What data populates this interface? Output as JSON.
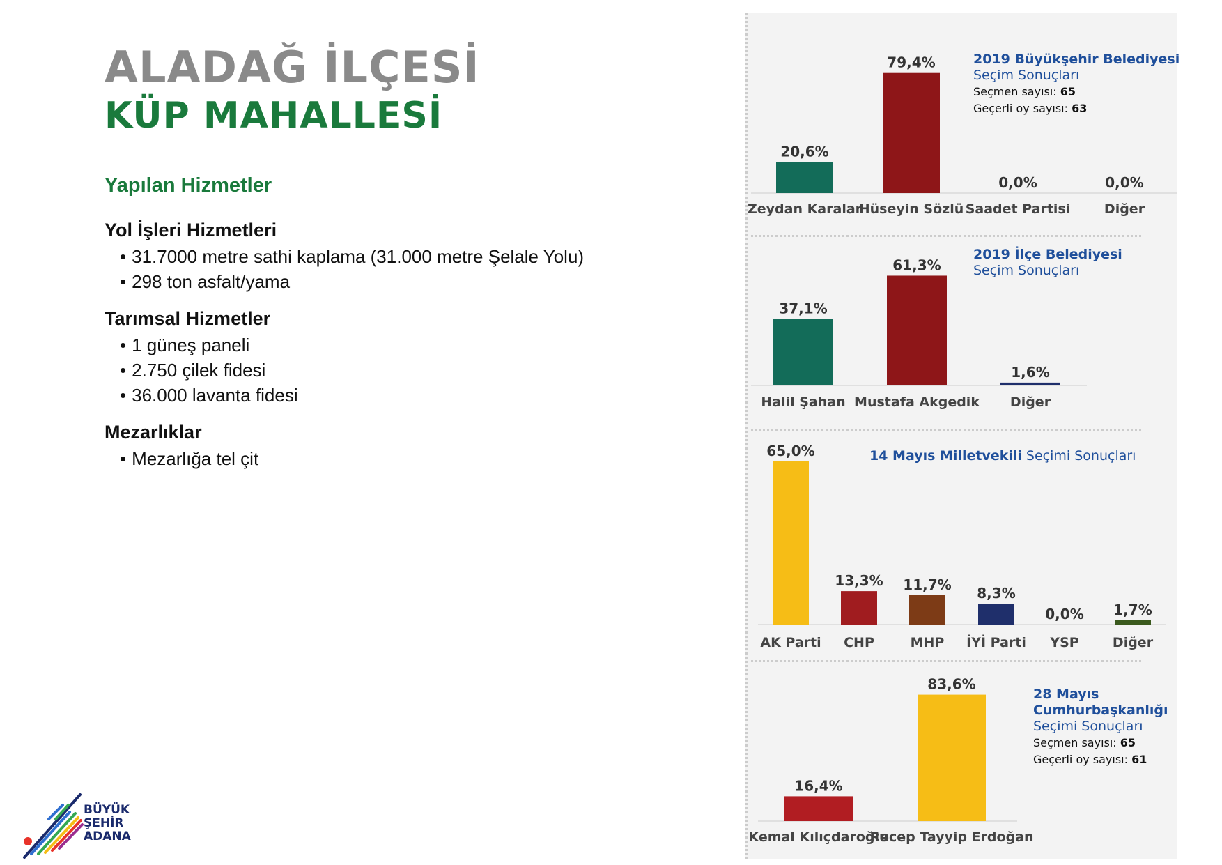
{
  "header": {
    "line1": "ALADAĞ İLÇESİ",
    "line2": "KÜP MAHALLESİ"
  },
  "services": {
    "title": "Yapılan Hizmetler",
    "categories": [
      {
        "name": "Yol İşleri Hizmetleri",
        "items": [
          "31.7000 metre sathi kaplama (31.000 metre Şelale Yolu)",
          "298 ton asfalt/yama"
        ]
      },
      {
        "name": "Tarımsal Hizmetler",
        "items": [
          "1 güneş paneli",
          "2.750 çilek fidesi",
          "36.000 lavanta fidesi"
        ]
      },
      {
        "name": "Mezarlıklar",
        "items": [
          "Mezarlığa tel çit"
        ]
      }
    ]
  },
  "legends": {
    "c1": {
      "bold": "2019 Büyükşehir Belediyesi",
      "norm": "Seçim Sonuçları",
      "voters_label": "Seçmen sayısı: ",
      "voters": "65",
      "valid_label": "Geçerli oy sayısı: ",
      "valid": "63"
    },
    "c2": {
      "bold": "2019 İlçe Belediyesi",
      "norm": "Seçim Sonuçları"
    },
    "c3": {
      "bold": "14 Mayıs Milletvekili",
      "norm": " Seçimi Sonuçları"
    },
    "c4": {
      "bold1": "28 Mayıs",
      "bold2": "Cumhurbaşkanlığı",
      "norm": "Seçimi Sonuçları",
      "voters_label": "Seçmen sayısı: ",
      "voters": "65",
      "valid_label": "Geçerli oy sayısı: ",
      "valid": "61"
    }
  },
  "logo": {
    "line1": "BÜYÜK",
    "line2": "ŞEHİR",
    "line3": "ADANA"
  },
  "chart_data": [
    {
      "type": "bar",
      "title": "2019 Büyükşehir Belediyesi Seçim Sonuçları",
      "categories": [
        "Zeydan Karalar",
        "Hüseyin Sözlü",
        "Saadet Partisi",
        "Diğer"
      ],
      "values": [
        20.6,
        79.4,
        0.0,
        0.0
      ],
      "labels": [
        "20,6%",
        "79,4%",
        "0,0%",
        "0,0%"
      ],
      "colors": [
        "#136c59",
        "#8e1618",
        "#136c59",
        "#136c59"
      ]
    },
    {
      "type": "bar",
      "title": "2019 İlçe Belediyesi Seçim Sonuçları",
      "categories": [
        "Halil Şahan",
        "Mustafa Akgedik",
        "Diğer"
      ],
      "values": [
        37.1,
        61.3,
        1.6
      ],
      "labels": [
        "37,1%",
        "61,3%",
        "1,6%"
      ],
      "colors": [
        "#136c59",
        "#8e1618",
        "#1f2f6b"
      ]
    },
    {
      "type": "bar",
      "title": "14 Mayıs Milletvekili Seçimi Sonuçları",
      "categories": [
        "AK Parti",
        "CHP",
        "MHP",
        "İYİ Parti",
        "YSP",
        "Diğer"
      ],
      "values": [
        65.0,
        13.3,
        11.7,
        8.3,
        0.0,
        1.7
      ],
      "labels": [
        "65,0%",
        "13,3%",
        "11,7%",
        "8,3%",
        "0,0%",
        "1,7%"
      ],
      "colors": [
        "#f6bd16",
        "#a01c1f",
        "#7d3b16",
        "#1f2f6b",
        "#7a2a7a",
        "#3b5a1e"
      ]
    },
    {
      "type": "bar",
      "title": "28 Mayıs Cumhurbaşkanlığı Seçimi Sonuçları",
      "categories": [
        "Kemal Kılıçdaroğlu",
        "Recep Tayyip Erdoğan"
      ],
      "values": [
        16.4,
        83.6
      ],
      "labels": [
        "16,4%",
        "83,6%"
      ],
      "colors": [
        "#b11d22",
        "#f6bd16"
      ]
    }
  ]
}
